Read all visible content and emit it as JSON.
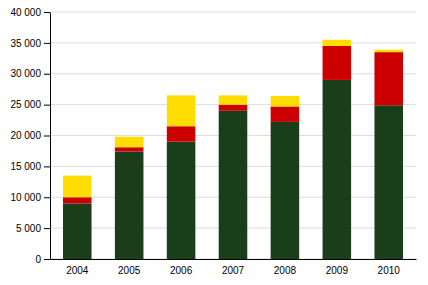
{
  "chart_data": {
    "type": "bar",
    "stacked": true,
    "categories": [
      "2004",
      "2005",
      "2006",
      "2007",
      "2008",
      "2009",
      "2010"
    ],
    "series": [
      {
        "color": "#1a3d1a",
        "values": [
          9000,
          17400,
          19000,
          24000,
          22200,
          29000,
          24900
        ]
      },
      {
        "color": "#cc0000",
        "values": [
          1000,
          700,
          2500,
          1000,
          2500,
          5500,
          8600
        ]
      },
      {
        "color": "#ffdd00",
        "values": [
          3500,
          1700,
          5000,
          1500,
          1700,
          1000,
          400
        ]
      }
    ],
    "ylim": [
      0,
      40000
    ],
    "yticks": [
      0,
      {
        "value": 5000,
        "label": "5 000"
      },
      {
        "value": 10000,
        "label": "10 000"
      },
      {
        "value": 15000,
        "label": "15 000"
      },
      {
        "value": 20000,
        "label": "20 000"
      },
      {
        "value": 25000,
        "label": "25 000"
      },
      {
        "value": 30000,
        "label": "30 000"
      },
      {
        "value": 35000,
        "label": "35 000"
      },
      {
        "value": 40000,
        "label": "40 000"
      }
    ],
    "grid": true
  }
}
